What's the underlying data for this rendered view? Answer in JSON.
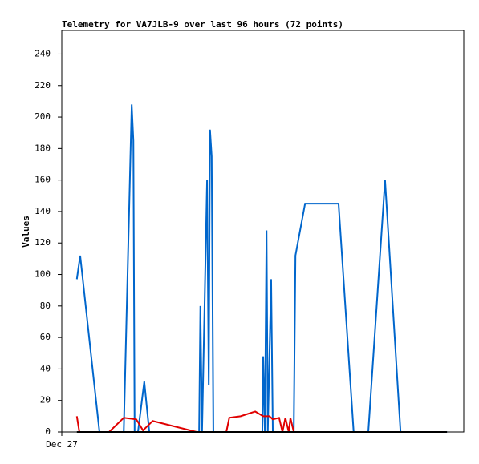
{
  "chart_data": {
    "type": "line",
    "title": "Telemetry for VA7JLB-9 over last 96 hours (72 points)",
    "y_label": "Values",
    "xlim": [
      0,
      96
    ],
    "xticks": [
      {
        "value": 0,
        "label": "Dec 27"
      }
    ],
    "ylim": [
      0,
      255
    ],
    "yticks": [
      0,
      20,
      40,
      60,
      80,
      100,
      120,
      140,
      160,
      180,
      200,
      220,
      240
    ],
    "grid": false,
    "series": [
      {
        "color": "#0066cc",
        "x": [
          3.6,
          4.4,
          9.0,
          14.8,
          16.7,
          17.1,
          17.4,
          18.2,
          19.7,
          20.9,
          32.8,
          33.1,
          33.5,
          34.7,
          35.1,
          35.4,
          35.8,
          36.2,
          47.9,
          48.1,
          48.5,
          48.9,
          49.2,
          50.0,
          50.4,
          55.4,
          55.8,
          58.1,
          66.1,
          69.7,
          73.2,
          77.2,
          80.9,
          92.0
        ],
        "values": [
          97,
          112,
          0,
          0,
          208,
          185,
          0,
          0,
          32,
          0,
          0,
          80,
          0,
          160,
          30,
          192,
          175,
          0,
          0,
          48,
          0,
          128,
          0,
          97,
          0,
          0,
          112,
          145,
          145,
          0,
          0,
          160,
          0,
          0
        ]
      },
      {
        "color": "#e00000",
        "x": [
          3.6,
          4.2,
          11.3,
          14.8,
          17.8,
          19.4,
          21.7,
          32.2,
          39.3,
          40.0,
          42.7,
          46.2,
          48.1,
          49.6,
          50.4,
          51.9,
          52.7,
          53.4,
          54.2,
          54.6,
          55.4
        ],
        "values": [
          10,
          0,
          0,
          9,
          8,
          1,
          7,
          0,
          0,
          9,
          10,
          13,
          10,
          10,
          8,
          9,
          0,
          9,
          0,
          9,
          0
        ]
      },
      {
        "color": "#000000",
        "x": [
          3.6,
          92.0
        ],
        "values": [
          0,
          0
        ]
      }
    ]
  }
}
